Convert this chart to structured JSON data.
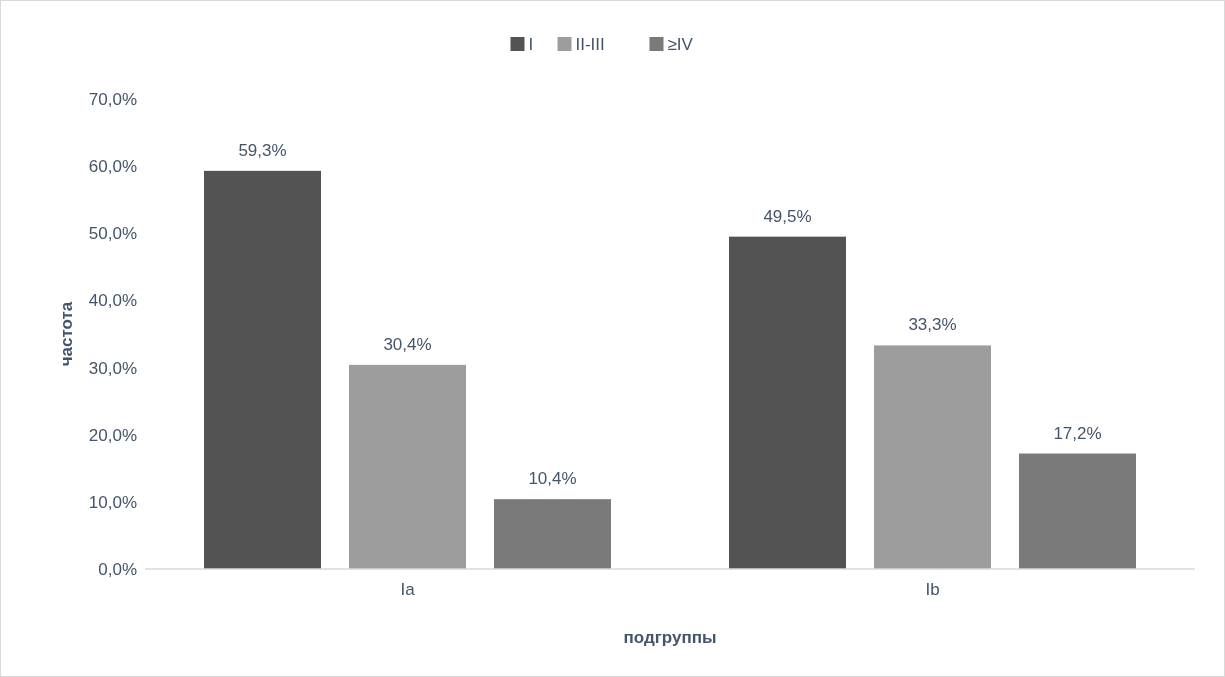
{
  "chart_data": {
    "type": "bar",
    "xlabel": "подгруппы",
    "ylabel": "частота",
    "categories": [
      "Ia",
      "Ib"
    ],
    "series": [
      {
        "name": "I",
        "color": "#535353",
        "values": [
          59.3,
          49.5
        ],
        "value_labels": [
          "59,3%",
          "49,5%"
        ]
      },
      {
        "name": "II-III",
        "color": "#9d9d9d",
        "values": [
          30.4,
          33.3
        ],
        "value_labels": [
          "30,4%",
          "33,3%"
        ]
      },
      {
        "name": "≥IV",
        "color": "#7a7a7a",
        "values": [
          10.4,
          17.2
        ],
        "value_labels": [
          "10,4%",
          "17,2%"
        ]
      }
    ],
    "ylim": [
      0,
      70
    ],
    "yticks": [
      {
        "value": 0,
        "label": "0,0%"
      },
      {
        "value": 10,
        "label": "10,0%"
      },
      {
        "value": 20,
        "label": "20,0%"
      },
      {
        "value": 30,
        "label": "30,0%"
      },
      {
        "value": 40,
        "label": "40,0%"
      },
      {
        "value": 50,
        "label": "50,0%"
      },
      {
        "value": 60,
        "label": "60,0%"
      },
      {
        "value": 70,
        "label": "70,0%"
      }
    ],
    "legend": "top",
    "grid": false
  }
}
